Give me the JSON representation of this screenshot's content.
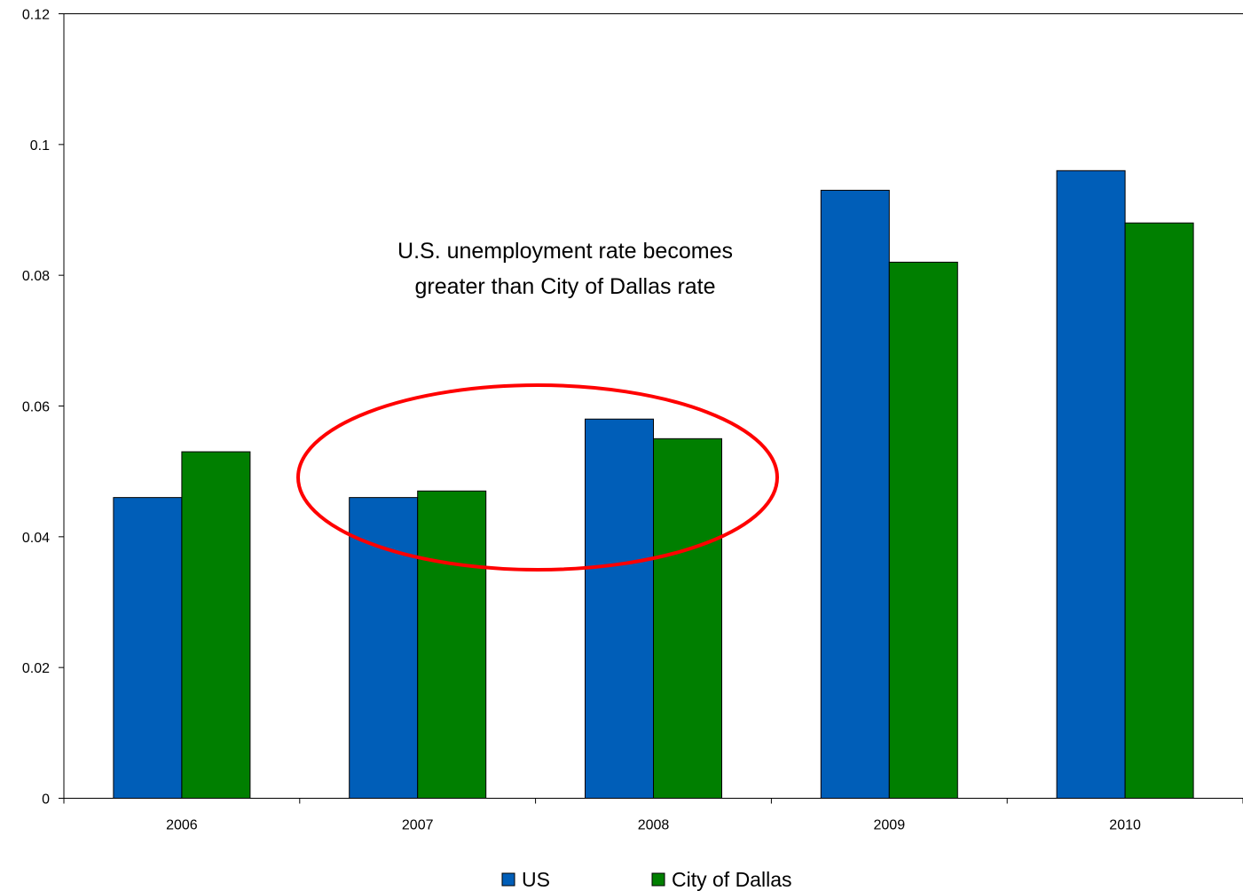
{
  "chart_data": {
    "type": "bar",
    "title": "",
    "xlabel": "",
    "ylabel": "",
    "categories": [
      "2006",
      "2007",
      "2008",
      "2009",
      "2010"
    ],
    "series": [
      {
        "name": "US",
        "color": "#005EB8",
        "values": [
          0.046,
          0.046,
          0.058,
          0.093,
          0.096
        ]
      },
      {
        "name": "City of Dallas",
        "color": "#007F00",
        "values": [
          0.053,
          0.047,
          0.055,
          0.082,
          0.088
        ]
      }
    ],
    "ylim": [
      0,
      0.12
    ],
    "y_ticks": [
      "0",
      "0.02",
      "0.04",
      "0.06",
      "0.08",
      "0.1",
      "0.12"
    ],
    "grid": false,
    "legend_position": "bottom",
    "annotation": {
      "lines": [
        "U.S. unemployment rate becomes",
        "greater than City of Dallas rate"
      ],
      "highlight_color": "#FF0000"
    }
  }
}
